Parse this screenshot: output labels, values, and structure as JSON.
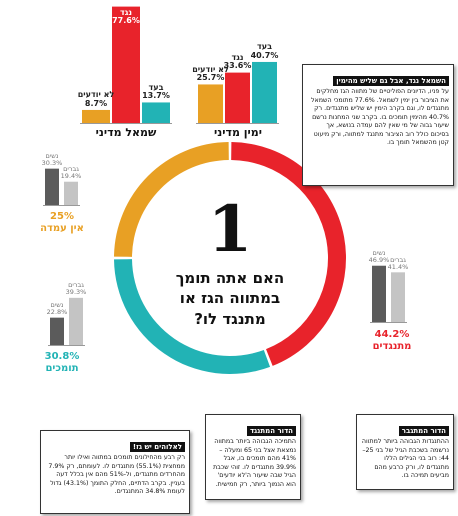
{
  "chart_data": [
    {
      "type": "donut",
      "categories": [
        "מתנגדים",
        "תומכים",
        "אין עמדה"
      ],
      "values": [
        44.2,
        30.8,
        25
      ],
      "value_labels": [
        "44.2%",
        "30.8%",
        "25%"
      ],
      "colors": [
        "#e8232b",
        "#22b3b5",
        "#e8a024"
      ],
      "center_number": "1",
      "center_text": "האם אתה תומך במתווה הגז או מתנגד לו?"
    },
    {
      "type": "bar",
      "title": "שמאל מדיני",
      "categories": [
        "לא יודעים",
        "נגד",
        "בעד"
      ],
      "values": [
        8.7,
        77.6,
        13.7
      ],
      "value_labels": [
        "8.7%",
        "77.6%",
        "13.7%"
      ],
      "colors": [
        "#e8a024",
        "#e8232b",
        "#22b3b5"
      ]
    },
    {
      "type": "bar",
      "title": "ימין מדיני",
      "categories": [
        "לא יודעים",
        "נגד",
        "בעד"
      ],
      "values": [
        25.7,
        33.6,
        40.7
      ],
      "value_labels": [
        "25.7%",
        "33.6%",
        "40.7%"
      ],
      "colors": [
        "#e8a024",
        "#e8232b",
        "#22b3b5"
      ]
    },
    {
      "type": "bar",
      "categories": [
        "נשים",
        "גברים"
      ],
      "values": [
        30.3,
        19.4
      ],
      "value_labels": [
        "30.3%",
        "19.4%"
      ],
      "colors": [
        "#5b5b5b",
        "#c4c4c4"
      ]
    },
    {
      "type": "bar",
      "categories": [
        "נשים",
        "גברים"
      ],
      "values": [
        22.8,
        39.3
      ],
      "value_labels": [
        "22.8%",
        "39.3%"
      ],
      "colors": [
        "#5b5b5b",
        "#c4c4c4"
      ]
    },
    {
      "type": "bar",
      "categories": [
        "נשים",
        "גברים"
      ],
      "values": [
        46.9,
        41.4
      ],
      "value_labels": [
        "46.9%",
        "41.4%"
      ],
      "colors": [
        "#5b5b5b",
        "#c4c4c4"
      ]
    }
  ],
  "text_boxes": [
    {
      "title": "השמאל נגד, אבל גם שליש מהימין",
      "body": "על פניו, הדיונים הפוליטיים של מתווה הגז מחלקים את הציבור בין ימין לשמאל. 77.6% מתומכי השמאל מתנגדים לו, וגם בקרב הימין יש שליש מתנגדים. רק 40.7% מהימין תומכים בו. בקרב שני המחנות נרשם שיעור גבוה של מי שאין להם עמדה בנושא, אך בסיכום כולל רוב הציבור מתנגד למתווה, ורק מיעוט קטן מהשמאל תומך בו."
    },
    {
      "title": "לאלוהים יש גז!",
      "body": "רק רבע מהחילונים תומכים במתווה ואילו יותר ממחצית (55.1%) מתנגדים לו. לעומתם, רק 7.9% מהחרדים מתנגדים, ול-51% מהם אין בכלל דעה בעניין. בקרב הדתיים, החלק התומך (43.1%) גדול לעומת 34.8% המתנגדים."
    },
    {
      "title": "הדור המתנגד",
      "body": "התמיכה הגבוהה ביותר במתווה נמצאת אצל בני 65 ומעלה – 41% מהם תומכים בו, אבל 39.9% מתנגדים לו. זוהי שכבת הגיל שבה שיעור ה'לא יודעים' הוא הנמוך ביותר, רק חמישית."
    },
    {
      "title": "הדור המתגבר",
      "body": "ההתנגדות הגבוהה ביותר למתווה נרשמה בשכבת הגיל של בני 25–44: רוב בני הגילים הללו מתנגדים לו, ורק כרבע מהם מביעים תמיכה בו."
    }
  ]
}
